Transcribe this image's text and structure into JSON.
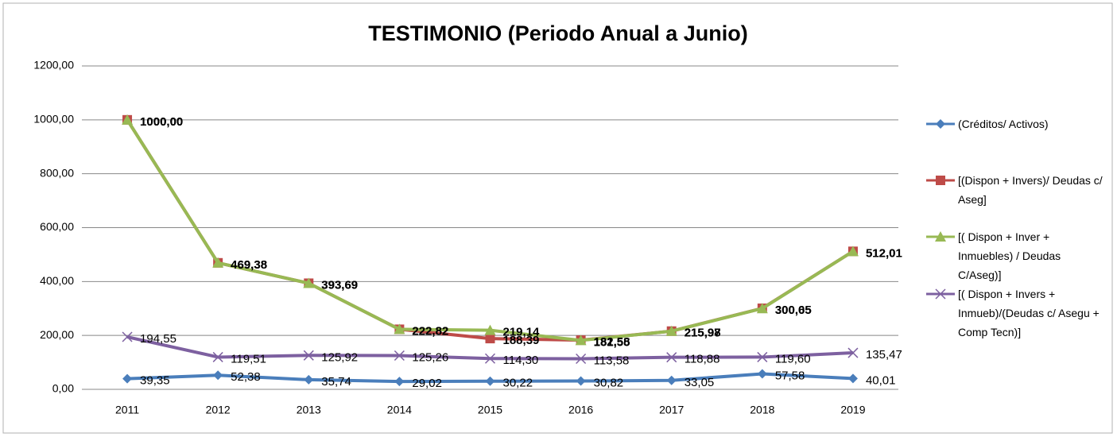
{
  "chart_data": {
    "type": "line",
    "title": "TESTIMONIO (Periodo Anual a Junio)",
    "categories": [
      "2011",
      "2012",
      "2013",
      "2014",
      "2015",
      "2016",
      "2017",
      "2018",
      "2019"
    ],
    "ylim": [
      0,
      1200
    ],
    "yticks": [
      {
        "value": 0,
        "label": "0,00"
      },
      {
        "value": 200,
        "label": "200,00"
      },
      {
        "value": 400,
        "label": "400,00"
      },
      {
        "value": 600,
        "label": "600,00"
      },
      {
        "value": 800,
        "label": "800,00"
      },
      {
        "value": 1000,
        "label": "1000,00"
      },
      {
        "value": 1200,
        "label": "1200,00"
      }
    ],
    "grid": true,
    "legend": "right",
    "series": [
      {
        "name": "(Créditos/ Activos)",
        "color": "#4a7ebb",
        "marker": "diamond",
        "values": [
          39.35,
          52.38,
          35.74,
          29.02,
          30.22,
          30.82,
          33.05,
          57.58,
          40.01
        ],
        "value_labels": [
          "39,35",
          "52,38",
          "35,74",
          "29,02",
          "30,22",
          "30,82",
          "33,05",
          "57,58",
          "40,01"
        ]
      },
      {
        "name": "[(Dispon + Invers)/ Deudas c/ Aseg]",
        "color": "#be4b48",
        "marker": "square",
        "values": [
          1000,
          469.38,
          393.69,
          222.82,
          188.39,
          182.58,
          215.97,
          300.65,
          512.01
        ],
        "value_labels": [
          "1000,00",
          "469,38",
          "393,69",
          "222,82",
          "188,39",
          "182,58",
          "215,97",
          "300,65",
          "512,01"
        ]
      },
      {
        "name": "[( Dispon + Inver + Inmuebles) / Deudas C/Aseg)]",
        "color": "#98b954",
        "marker": "triangle",
        "values": [
          1000,
          469.38,
          393.69,
          222.82,
          219.14,
          181.55,
          215.98,
          300.05,
          512.01
        ],
        "value_labels": [
          "1000,00",
          "469,38",
          "393,69",
          "222,82",
          "219,14",
          "181,55",
          "215,98",
          "300,05",
          "512,01"
        ]
      },
      {
        "name": "[( Dispon + Invers + Inmueb)/(Deudas c/ Asegu + Comp Tecn)]",
        "color": "#7d60a0",
        "marker": "x",
        "values": [
          194.55,
          119.51,
          125.92,
          125.26,
          114.3,
          113.58,
          118.88,
          119.6,
          135.47
        ],
        "value_labels": [
          "194,55",
          "119,51",
          "125,92",
          "125,26",
          "114,30",
          "113,58",
          "118,88",
          "119,60",
          "135,47"
        ]
      }
    ]
  }
}
